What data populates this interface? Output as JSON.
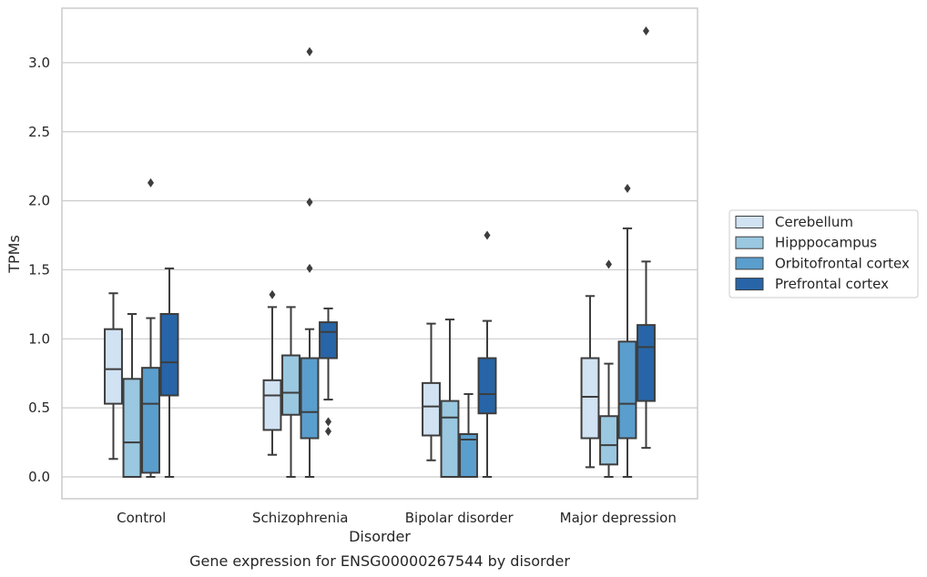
{
  "chart_data": {
    "type": "box",
    "xlabel": "Disorder",
    "ylabel": "TPMs",
    "caption": "Gene expression for ENSG00000267544 by disorder",
    "ylim": [
      -0.16,
      3.4
    ],
    "yticks": [
      "0.0",
      "0.5",
      "1.0",
      "1.5",
      "2.0",
      "2.5",
      "3.0"
    ],
    "grid": true,
    "legend_position": "right",
    "categories": [
      "Control",
      "Schizophrenia",
      "Bipolar disorder",
      "Major depression"
    ],
    "series": [
      {
        "name": "Cerebellum",
        "color": "#d1e2f2",
        "boxes": [
          {
            "whislo": 0.13,
            "q1": 0.53,
            "med": 0.78,
            "q3": 1.07,
            "whishi": 1.33,
            "fliers": []
          },
          {
            "whislo": 0.16,
            "q1": 0.34,
            "med": 0.59,
            "q3": 0.7,
            "whishi": 1.23,
            "fliers": [
              1.32
            ]
          },
          {
            "whislo": 0.12,
            "q1": 0.3,
            "med": 0.51,
            "q3": 0.68,
            "whishi": 1.11,
            "fliers": []
          },
          {
            "whislo": 0.07,
            "q1": 0.28,
            "med": 0.58,
            "q3": 0.86,
            "whishi": 1.31,
            "fliers": []
          }
        ]
      },
      {
        "name": "Hipppocampus",
        "color": "#9ac8e0",
        "boxes": [
          {
            "whislo": 0.0,
            "q1": 0.0,
            "med": 0.25,
            "q3": 0.71,
            "whishi": 1.18,
            "fliers": []
          },
          {
            "whislo": 0.0,
            "q1": 0.45,
            "med": 0.61,
            "q3": 0.88,
            "whishi": 1.23,
            "fliers": []
          },
          {
            "whislo": 0.0,
            "q1": 0.0,
            "med": 0.43,
            "q3": 0.55,
            "whishi": 1.14,
            "fliers": []
          },
          {
            "whislo": 0.0,
            "q1": 0.09,
            "med": 0.23,
            "q3": 0.44,
            "whishi": 0.82,
            "fliers": [
              1.54
            ]
          }
        ]
      },
      {
        "name": "Orbitofrontal cortex",
        "color": "#5a9ecd",
        "boxes": [
          {
            "whislo": 0.0,
            "q1": 0.03,
            "med": 0.53,
            "q3": 0.79,
            "whishi": 1.15,
            "fliers": [
              2.13
            ]
          },
          {
            "whislo": 0.0,
            "q1": 0.28,
            "med": 0.47,
            "q3": 0.86,
            "whishi": 1.07,
            "fliers": [
              3.08,
              1.99,
              1.51
            ]
          },
          {
            "whislo": 0.0,
            "q1": 0.0,
            "med": 0.27,
            "q3": 0.31,
            "whishi": 0.6,
            "fliers": []
          },
          {
            "whislo": 0.0,
            "q1": 0.28,
            "med": 0.53,
            "q3": 0.98,
            "whishi": 1.8,
            "fliers": [
              2.09
            ]
          }
        ]
      },
      {
        "name": "Prefrontal cortex",
        "color": "#2765a8",
        "boxes": [
          {
            "whislo": 0.0,
            "q1": 0.59,
            "med": 0.83,
            "q3": 1.18,
            "whishi": 1.51,
            "fliers": []
          },
          {
            "whislo": 0.56,
            "q1": 0.86,
            "med": 1.05,
            "q3": 1.12,
            "whishi": 1.22,
            "fliers": [
              0.4,
              0.33
            ]
          },
          {
            "whislo": 0.0,
            "q1": 0.46,
            "med": 0.6,
            "q3": 0.86,
            "whishi": 1.13,
            "fliers": [
              1.75
            ]
          },
          {
            "whislo": 0.21,
            "q1": 0.55,
            "med": 0.94,
            "q3": 1.1,
            "whishi": 1.56,
            "fliers": [
              3.23
            ]
          }
        ]
      }
    ]
  }
}
